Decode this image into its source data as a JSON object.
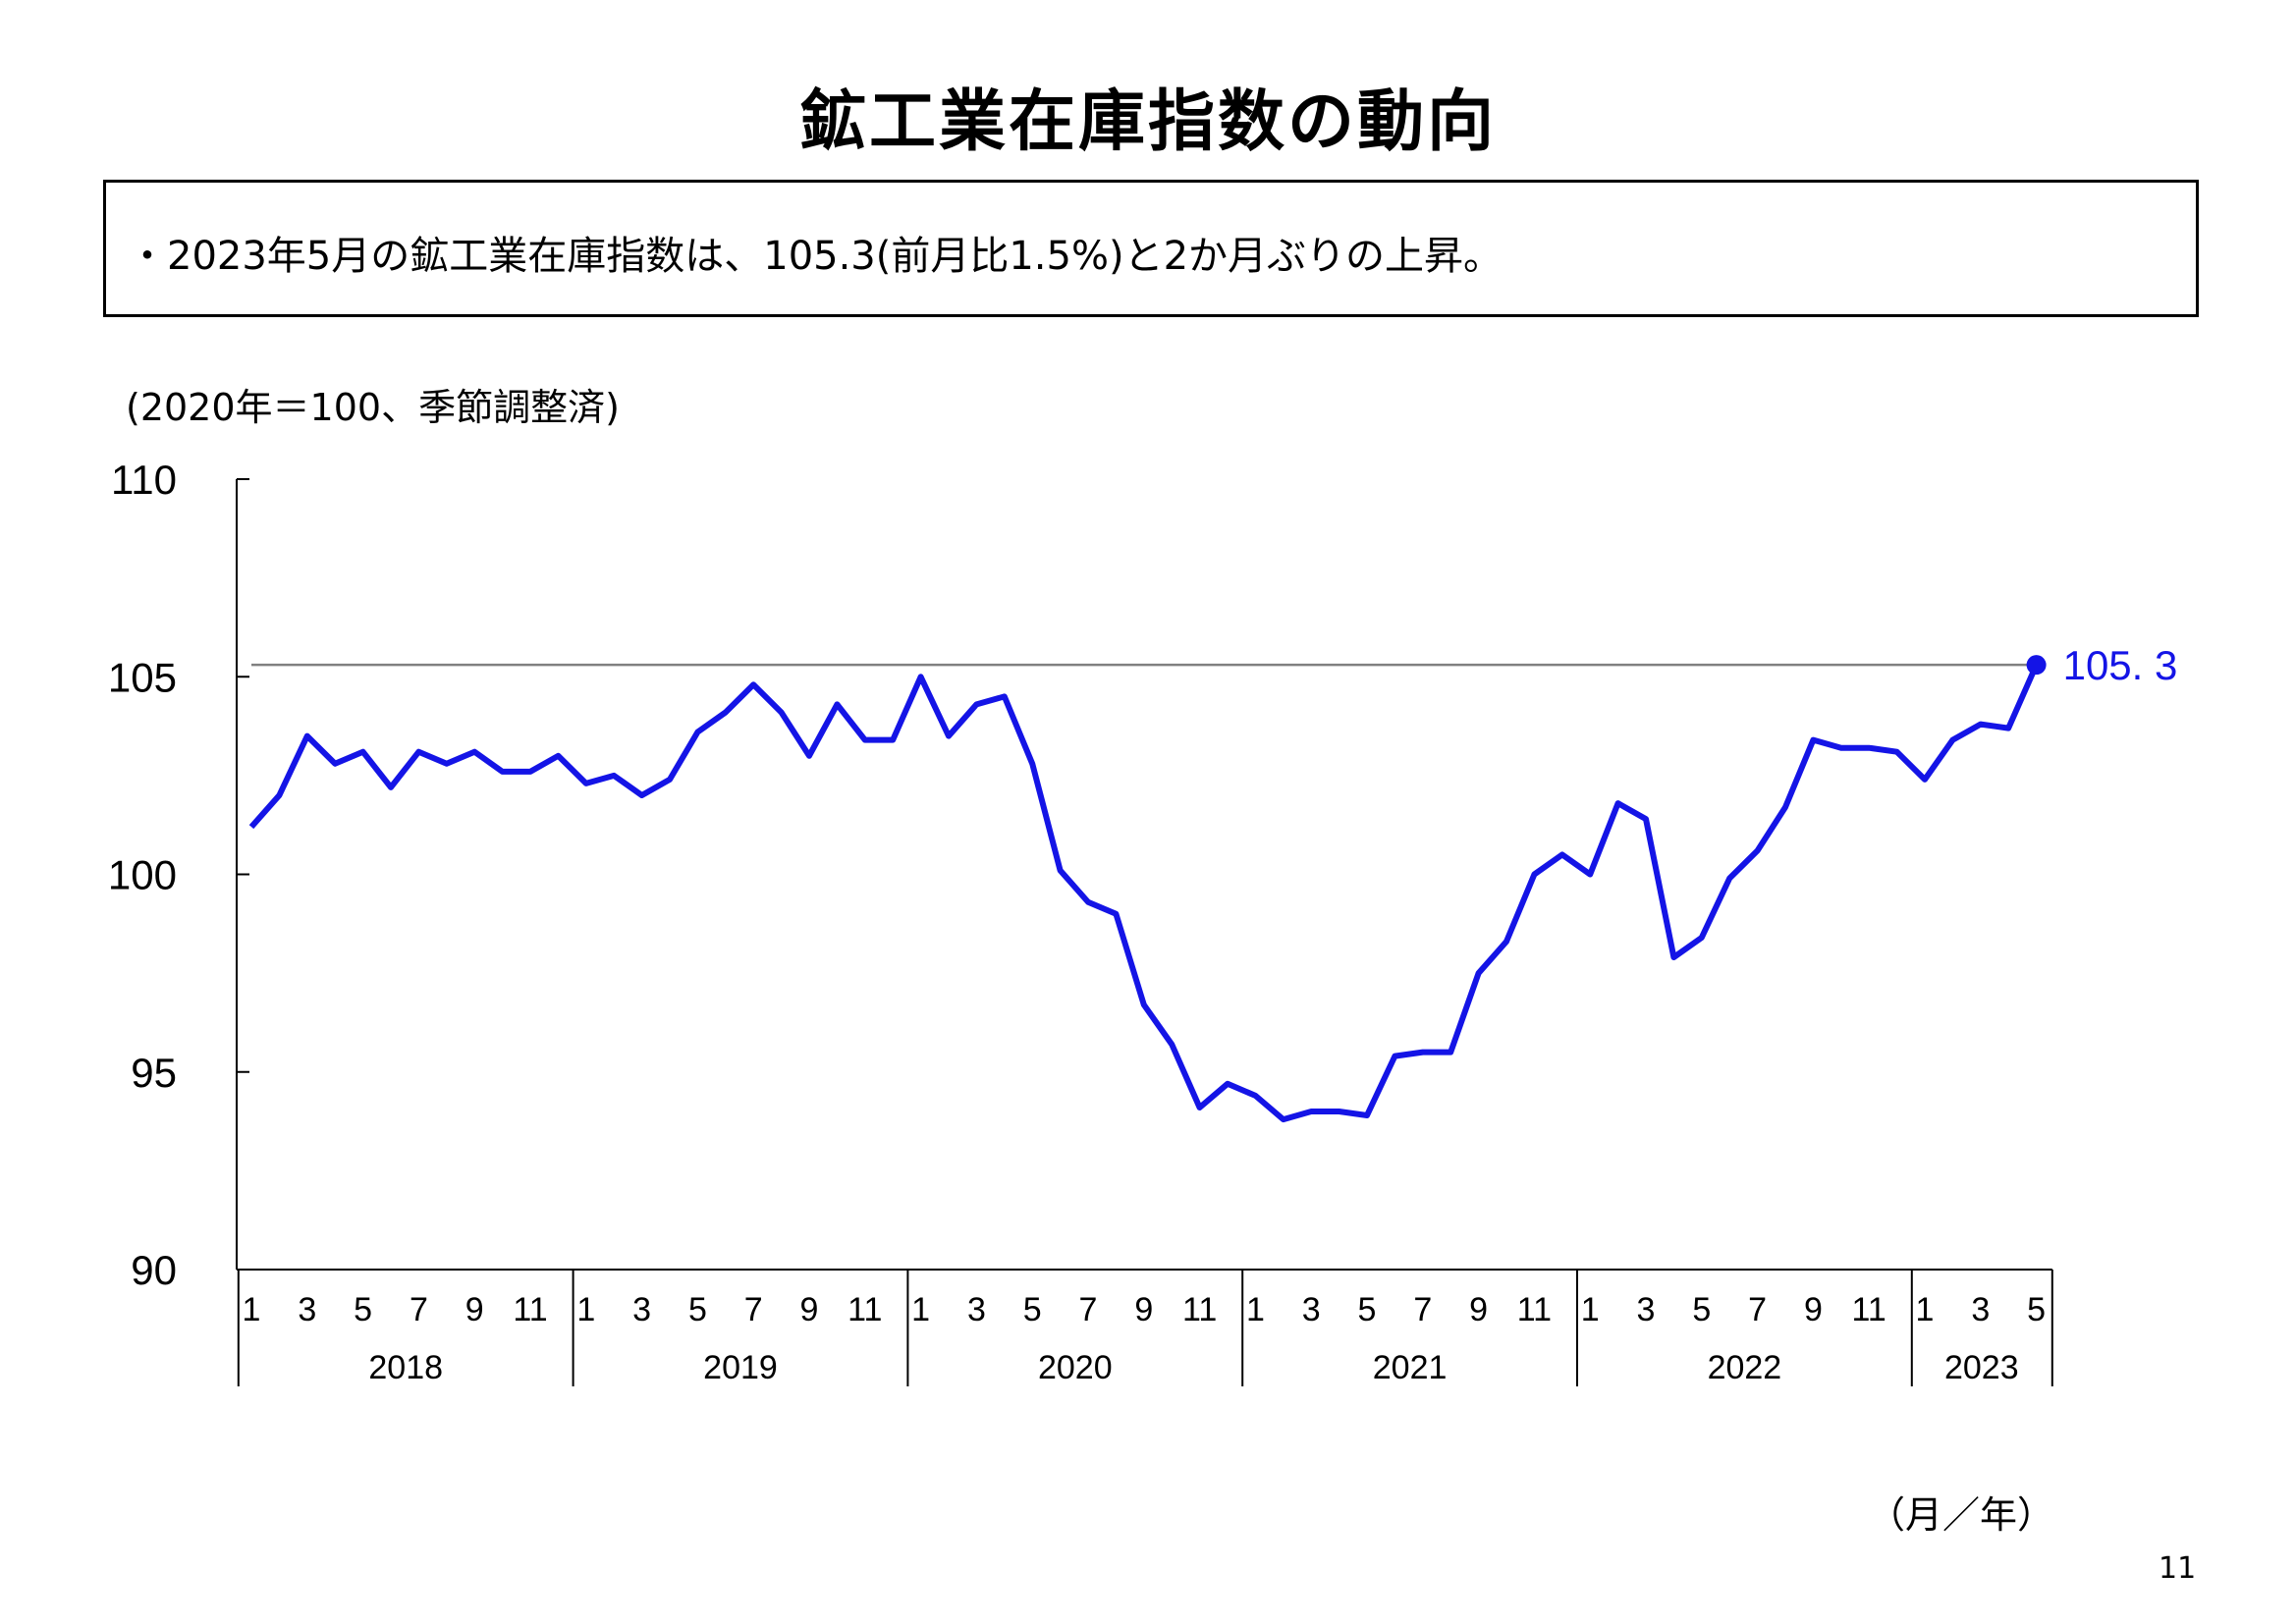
{
  "page": {
    "title": "鉱工業在庫指数の動向",
    "summary": "・2023年5月の鉱工業在庫指数は、105.3(前月比1.5%)と2か月ぶりの上昇。",
    "unit_note": "(2020年＝100、季節調整済)",
    "x_unit": "（月／年）",
    "page_number": "11"
  },
  "chart_data": {
    "type": "line",
    "title": "",
    "xlabel": "",
    "ylabel": "",
    "ylim": [
      90,
      110
    ],
    "yticks": [
      90,
      95,
      100,
      105,
      110
    ],
    "reference_line": 105.3,
    "month_tick_labels": [
      "1",
      "3",
      "5",
      "7",
      "9",
      "11"
    ],
    "years": [
      {
        "label": "2018",
        "months": 12
      },
      {
        "label": "2019",
        "months": 12
      },
      {
        "label": "2020",
        "months": 12
      },
      {
        "label": "2021",
        "months": 12
      },
      {
        "label": "2022",
        "months": 12
      },
      {
        "label": "2023",
        "months": 5
      }
    ],
    "series": [
      {
        "color": "#1414e6",
        "values": [
          101.2,
          102.0,
          103.5,
          102.8,
          103.1,
          102.2,
          103.1,
          102.8,
          103.1,
          102.6,
          102.6,
          103.0,
          102.3,
          102.5,
          102.0,
          102.4,
          103.6,
          104.1,
          104.8,
          104.1,
          103.0,
          104.3,
          103.4,
          103.4,
          105.0,
          103.5,
          104.3,
          104.5,
          102.8,
          100.1,
          99.3,
          99.0,
          96.7,
          95.7,
          94.1,
          94.7,
          94.4,
          93.8,
          94.0,
          94.0,
          93.9,
          95.4,
          95.5,
          95.5,
          97.5,
          98.3,
          100.0,
          100.5,
          100.0,
          101.8,
          101.4,
          97.9,
          98.4,
          99.9,
          100.6,
          101.7,
          103.4,
          103.2,
          103.2,
          103.1,
          102.4,
          103.4,
          103.8,
          103.7,
          105.3
        ],
        "end_label": "105. 3"
      }
    ]
  }
}
